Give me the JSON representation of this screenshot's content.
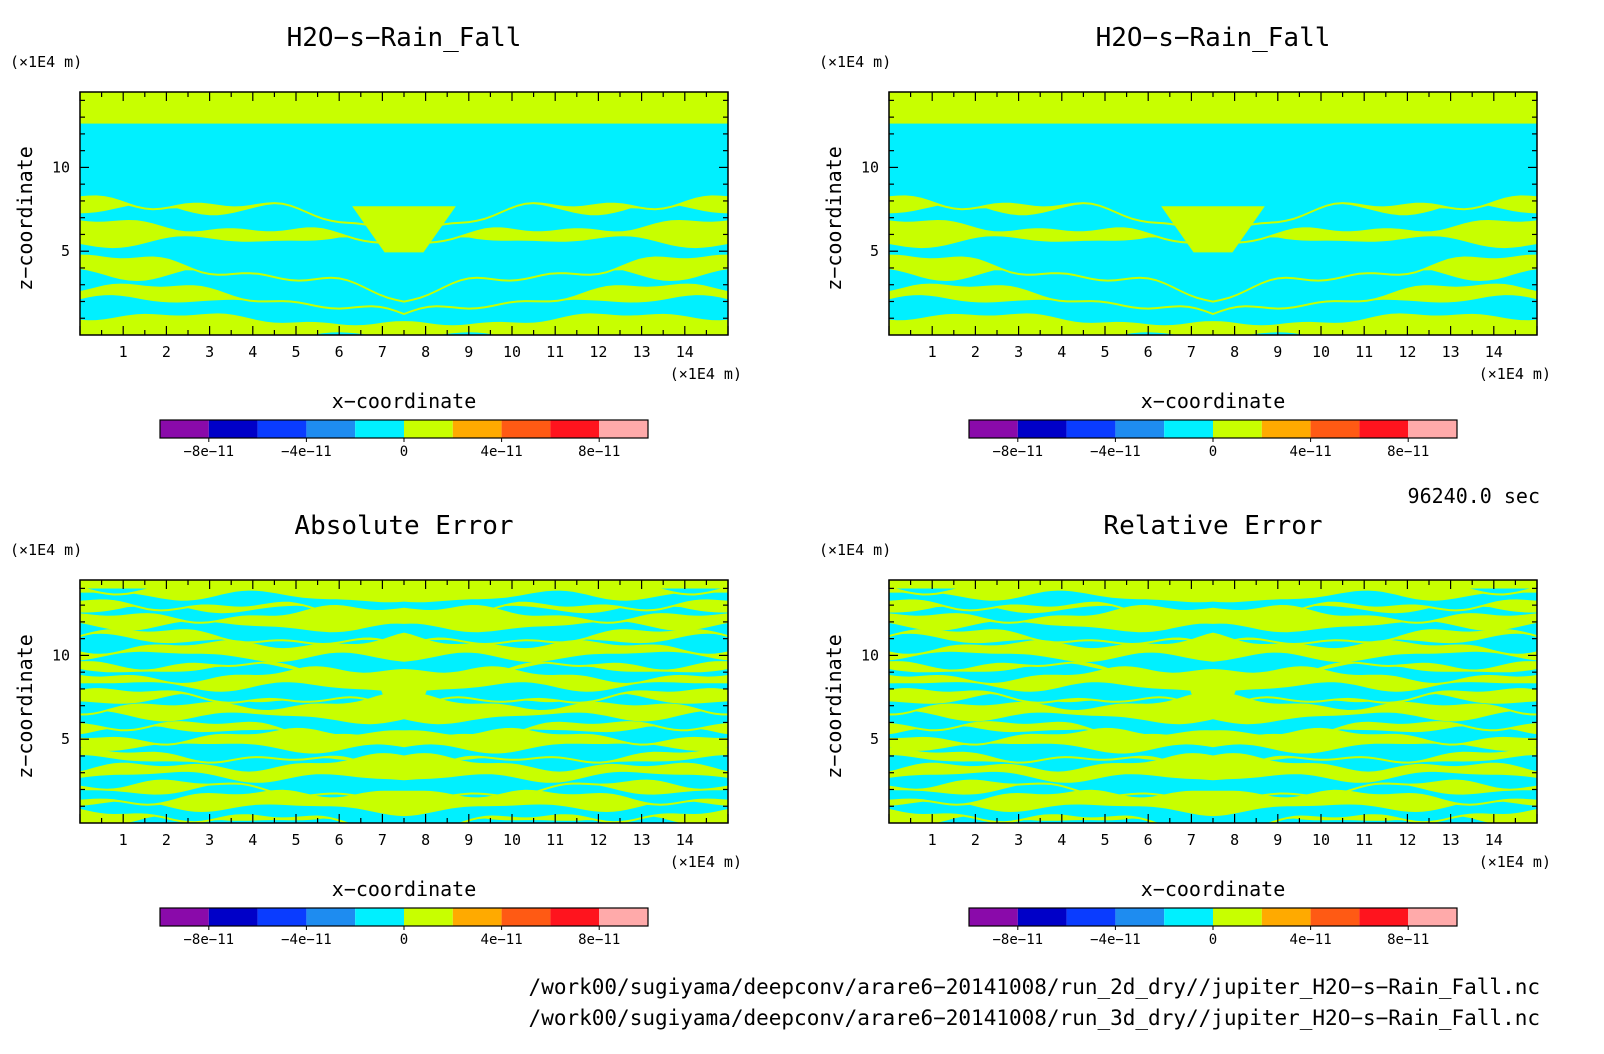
{
  "colorbar": {
    "colors": [
      "#8a0aaa",
      "#0000c8",
      "#0a3cff",
      "#1e8cf0",
      "#00f0ff",
      "#c8ff00",
      "#ffaa00",
      "#ff5a14",
      "#ff141e",
      "#ffaaaa"
    ],
    "labels": [
      "−8e−11",
      "−4e−11",
      "0",
      "4e−11",
      "8e−11"
    ]
  },
  "axes": {
    "x_ticks": [
      "1",
      "2",
      "3",
      "4",
      "5",
      "6",
      "7",
      "8",
      "9",
      "10",
      "11",
      "12",
      "13",
      "14"
    ],
    "y_ticks": [
      "5",
      "10"
    ],
    "x_unit": "(×1E4 m)",
    "y_unit": "(×1E4 m)",
    "xlabel": "x−coordinate",
    "ylabel": "z−coordinate"
  },
  "time_label": "96240.0 sec",
  "file_paths": [
    "/work00/sugiyama/deepconv/arare6−20141008/run_2d_dry//jupiter_H2O−s−Rain_Fall.nc",
    "/work00/sugiyama/deepconv/arare6−20141008/run_3d_dry//jupiter_H2O−s−Rain_Fall.nc"
  ],
  "chart_data": [
    {
      "type": "heatmap",
      "title": "H2O−s−Rain_Fall",
      "xlabel": "x−coordinate",
      "ylabel": "z−coordinate",
      "x_unit": "×1E4 m",
      "y_unit": "×1E4 m",
      "xlim": [
        0,
        15
      ],
      "ylim": [
        0,
        14.5
      ],
      "color_levels": [
        "−8e−11",
        "−4e−11",
        "0",
        "4e−11",
        "8e−11"
      ],
      "colorbar_range": [
        -1e-10,
        1e-10
      ],
      "top_band": {
        "z_min": 12.6,
        "z_max": 14.5,
        "level": "0 to 2e−11"
      },
      "field_layers_z": [
        {
          "z_from": 7.6,
          "z_to": 12.6,
          "level": "−2e−11 to 0"
        },
        {
          "z_from": 0,
          "z_to": 7.6,
          "level": "alternating −2e−11 to 2e−11"
        }
      ]
    },
    {
      "type": "heatmap",
      "title": "H2O−s−Rain_Fall",
      "xlabel": "x−coordinate",
      "ylabel": "z−coordinate",
      "x_unit": "×1E4 m",
      "y_unit": "×1E4 m",
      "xlim": [
        0,
        15
      ],
      "ylim": [
        0,
        14.5
      ],
      "colorbar_range": [
        -1e-10,
        1e-10
      ],
      "top_band": {
        "z_min": 12.6,
        "z_max": 14.5,
        "level": "0 to 2e−11"
      }
    },
    {
      "type": "heatmap",
      "title": "Absolute Error",
      "xlabel": "x−coordinate",
      "ylabel": "z−coordinate",
      "x_unit": "×1E4 m",
      "y_unit": "×1E4 m",
      "xlim": [
        0,
        15
      ],
      "ylim": [
        0,
        14.5
      ],
      "colorbar_range": [
        -1e-10,
        1e-10
      ],
      "values_range": [
        -2e-11,
        2e-11
      ]
    },
    {
      "type": "heatmap",
      "title": "Relative Error",
      "xlabel": "x−coordinate",
      "ylabel": "z−coordinate",
      "x_unit": "×1E4 m",
      "y_unit": "×1E4 m",
      "xlim": [
        0,
        15
      ],
      "ylim": [
        0,
        14.5
      ],
      "colorbar_range": [
        -1e-10,
        1e-10
      ],
      "values_range": [
        -2e-11,
        2e-11
      ]
    }
  ]
}
